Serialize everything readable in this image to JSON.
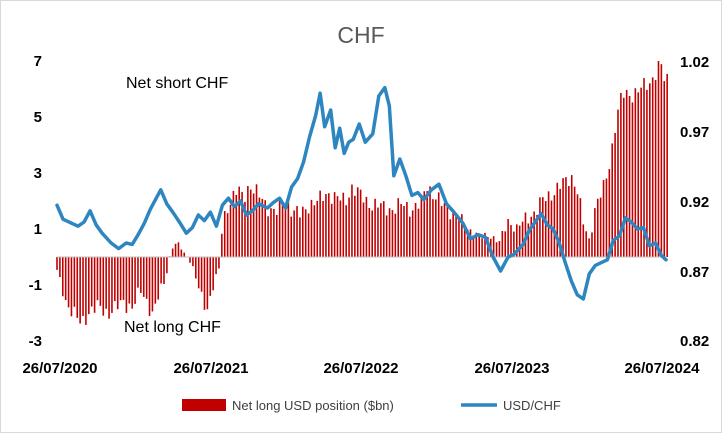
{
  "chart_data": {
    "type": "bar+line",
    "title": "CHF",
    "left_axis": {
      "ylim": [
        -3,
        7
      ],
      "ticks": [
        "7",
        "5",
        "3",
        "1",
        "-1",
        "-3"
      ],
      "tick_values": [
        7,
        5,
        3,
        1,
        -1,
        -3
      ]
    },
    "right_axis": {
      "ylim": [
        0.82,
        1.02
      ],
      "ticks": [
        "1.02",
        "0.97",
        "0.92",
        "0.87",
        "0.82"
      ],
      "tick_values": [
        1.02,
        0.97,
        0.92,
        0.87,
        0.82
      ]
    },
    "x_ticks": [
      "26/07/2020",
      "26/07/2021",
      "26/07/2022",
      "26/07/2023",
      "26/07/2024"
    ],
    "annotations": {
      "top": "Net short CHF",
      "bottom": "Net long CHF"
    },
    "colors": {
      "bars": "#c00000",
      "line": "#2e86c1",
      "zero_line": "#bfbfbf"
    },
    "series": [
      {
        "name": "Net long USD position ($bn)",
        "axis": "left",
        "type": "bar",
        "x": [
          2020.56,
          2021.56,
          2022.56,
          2023.56,
          2024.56
        ],
        "anchors": [
          [
            2020.56,
            -0.5
          ],
          [
            2020.62,
            -1.6
          ],
          [
            2020.68,
            -2.1
          ],
          [
            2020.72,
            -2.4
          ],
          [
            2020.78,
            -1.9
          ],
          [
            2020.84,
            -1.8
          ],
          [
            2020.9,
            -2.0
          ],
          [
            2020.96,
            -1.8
          ],
          [
            2021.0,
            -1.6
          ],
          [
            2021.06,
            -1.8
          ],
          [
            2021.12,
            -1.2
          ],
          [
            2021.16,
            -1.6
          ],
          [
            2021.2,
            -2.1
          ],
          [
            2021.24,
            -1.3
          ],
          [
            2021.28,
            -0.8
          ],
          [
            2021.32,
            0.3
          ],
          [
            2021.36,
            0.5
          ],
          [
            2021.4,
            0.2
          ],
          [
            2021.46,
            -0.3
          ],
          [
            2021.52,
            -1.5
          ],
          [
            2021.56,
            -1.8
          ],
          [
            2021.6,
            -1.0
          ],
          [
            2021.64,
            -0.4
          ],
          [
            2021.66,
            1.2
          ],
          [
            2021.7,
            1.9
          ],
          [
            2021.76,
            2.4
          ],
          [
            2021.8,
            2.1
          ],
          [
            2021.84,
            2.6
          ],
          [
            2021.9,
            2.2
          ],
          [
            2021.96,
            1.8
          ],
          [
            2022.02,
            1.6
          ],
          [
            2022.08,
            2.0
          ],
          [
            2022.12,
            1.7
          ],
          [
            2022.18,
            1.5
          ],
          [
            2022.24,
            1.9
          ],
          [
            2022.3,
            2.0
          ],
          [
            2022.36,
            2.3
          ],
          [
            2022.42,
            2.1
          ],
          [
            2022.48,
            2.0
          ],
          [
            2022.52,
            2.5
          ],
          [
            2022.58,
            2.2
          ],
          [
            2022.64,
            1.9
          ],
          [
            2022.72,
            1.8
          ],
          [
            2022.8,
            1.7
          ],
          [
            2022.86,
            1.9
          ],
          [
            2022.92,
            1.7
          ],
          [
            2022.98,
            1.9
          ],
          [
            2023.02,
            2.6
          ],
          [
            2023.08,
            2.1
          ],
          [
            2023.14,
            1.8
          ],
          [
            2023.2,
            1.6
          ],
          [
            2023.26,
            1.2
          ],
          [
            2023.32,
            0.9
          ],
          [
            2023.38,
            0.7
          ],
          [
            2023.44,
            0.8
          ],
          [
            2023.5,
            0.5
          ],
          [
            2023.56,
            1.3
          ],
          [
            2023.62,
            1.0
          ],
          [
            2023.68,
            1.4
          ],
          [
            2023.74,
            1.6
          ],
          [
            2023.8,
            2.1
          ],
          [
            2023.86,
            2.3
          ],
          [
            2023.92,
            2.6
          ],
          [
            2023.98,
            2.9
          ],
          [
            2024.02,
            2.4
          ],
          [
            2024.06,
            1.2
          ],
          [
            2024.1,
            0.6
          ],
          [
            2024.14,
            1.8
          ],
          [
            2024.2,
            2.5
          ],
          [
            2024.24,
            3.5
          ],
          [
            2024.28,
            5.0
          ],
          [
            2024.32,
            5.8
          ],
          [
            2024.38,
            5.8
          ],
          [
            2024.44,
            6.0
          ],
          [
            2024.5,
            6.2
          ],
          [
            2024.54,
            6.6
          ],
          [
            2024.57,
            7.0
          ],
          [
            2024.6,
            6.3
          ]
        ]
      },
      {
        "name": "USD/CHF",
        "axis": "right",
        "type": "line",
        "points": [
          [
            2020.56,
            0.917
          ],
          [
            2020.6,
            0.907
          ],
          [
            2020.66,
            0.904
          ],
          [
            2020.7,
            0.902
          ],
          [
            2020.74,
            0.905
          ],
          [
            2020.78,
            0.913
          ],
          [
            2020.82,
            0.903
          ],
          [
            2020.86,
            0.897
          ],
          [
            2020.92,
            0.89
          ],
          [
            2020.97,
            0.886
          ],
          [
            2021.02,
            0.89
          ],
          [
            2021.06,
            0.889
          ],
          [
            2021.1,
            0.896
          ],
          [
            2021.14,
            0.904
          ],
          [
            2021.18,
            0.914
          ],
          [
            2021.22,
            0.922
          ],
          [
            2021.25,
            0.928
          ],
          [
            2021.29,
            0.918
          ],
          [
            2021.33,
            0.912
          ],
          [
            2021.38,
            0.904
          ],
          [
            2021.42,
            0.897
          ],
          [
            2021.46,
            0.901
          ],
          [
            2021.5,
            0.91
          ],
          [
            2021.54,
            0.906
          ],
          [
            2021.58,
            0.912
          ],
          [
            2021.62,
            0.902
          ],
          [
            2021.66,
            0.917
          ],
          [
            2021.7,
            0.922
          ],
          [
            2021.74,
            0.916
          ],
          [
            2021.78,
            0.92
          ],
          [
            2021.82,
            0.91
          ],
          [
            2021.86,
            0.913
          ],
          [
            2021.9,
            0.918
          ],
          [
            2021.96,
            0.915
          ],
          [
            2022.0,
            0.919
          ],
          [
            2022.04,
            0.922
          ],
          [
            2022.08,
            0.915
          ],
          [
            2022.12,
            0.93
          ],
          [
            2022.16,
            0.936
          ],
          [
            2022.2,
            0.948
          ],
          [
            2022.24,
            0.966
          ],
          [
            2022.28,
            0.981
          ],
          [
            2022.31,
            0.997
          ],
          [
            2022.34,
            0.973
          ],
          [
            2022.38,
            0.985
          ],
          [
            2022.41,
            0.958
          ],
          [
            2022.44,
            0.972
          ],
          [
            2022.47,
            0.954
          ],
          [
            2022.5,
            0.962
          ],
          [
            2022.53,
            0.964
          ],
          [
            2022.57,
            0.975
          ],
          [
            2022.61,
            0.962
          ],
          [
            2022.66,
            0.968
          ],
          [
            2022.7,
            0.995
          ],
          [
            2022.74,
            1.001
          ],
          [
            2022.77,
            0.988
          ],
          [
            2022.8,
            0.938
          ],
          [
            2022.84,
            0.95
          ],
          [
            2022.88,
            0.938
          ],
          [
            2022.92,
            0.924
          ],
          [
            2022.96,
            0.926
          ],
          [
            2023.0,
            0.921
          ],
          [
            2023.05,
            0.928
          ],
          [
            2023.1,
            0.932
          ],
          [
            2023.15,
            0.918
          ],
          [
            2023.2,
            0.912
          ],
          [
            2023.26,
            0.904
          ],
          [
            2023.31,
            0.893
          ],
          [
            2023.36,
            0.896
          ],
          [
            2023.41,
            0.894
          ],
          [
            2023.46,
            0.88
          ],
          [
            2023.51,
            0.87
          ],
          [
            2023.56,
            0.88
          ],
          [
            2023.6,
            0.882
          ],
          [
            2023.66,
            0.889
          ],
          [
            2023.7,
            0.899
          ],
          [
            2023.74,
            0.905
          ],
          [
            2023.78,
            0.911
          ],
          [
            2023.82,
            0.903
          ],
          [
            2023.86,
            0.9
          ],
          [
            2023.9,
            0.89
          ],
          [
            2023.94,
            0.876
          ],
          [
            2023.98,
            0.863
          ],
          [
            2024.02,
            0.853
          ],
          [
            2024.06,
            0.85
          ],
          [
            2024.1,
            0.868
          ],
          [
            2024.14,
            0.874
          ],
          [
            2024.18,
            0.876
          ],
          [
            2024.22,
            0.878
          ],
          [
            2024.26,
            0.892
          ],
          [
            2024.3,
            0.895
          ],
          [
            2024.34,
            0.908
          ],
          [
            2024.38,
            0.905
          ],
          [
            2024.42,
            0.9
          ],
          [
            2024.46,
            0.901
          ],
          [
            2024.5,
            0.888
          ],
          [
            2024.54,
            0.89
          ],
          [
            2024.58,
            0.881
          ],
          [
            2024.61,
            0.878
          ]
        ]
      }
    ],
    "legend": {
      "placement": "bottom"
    }
  }
}
